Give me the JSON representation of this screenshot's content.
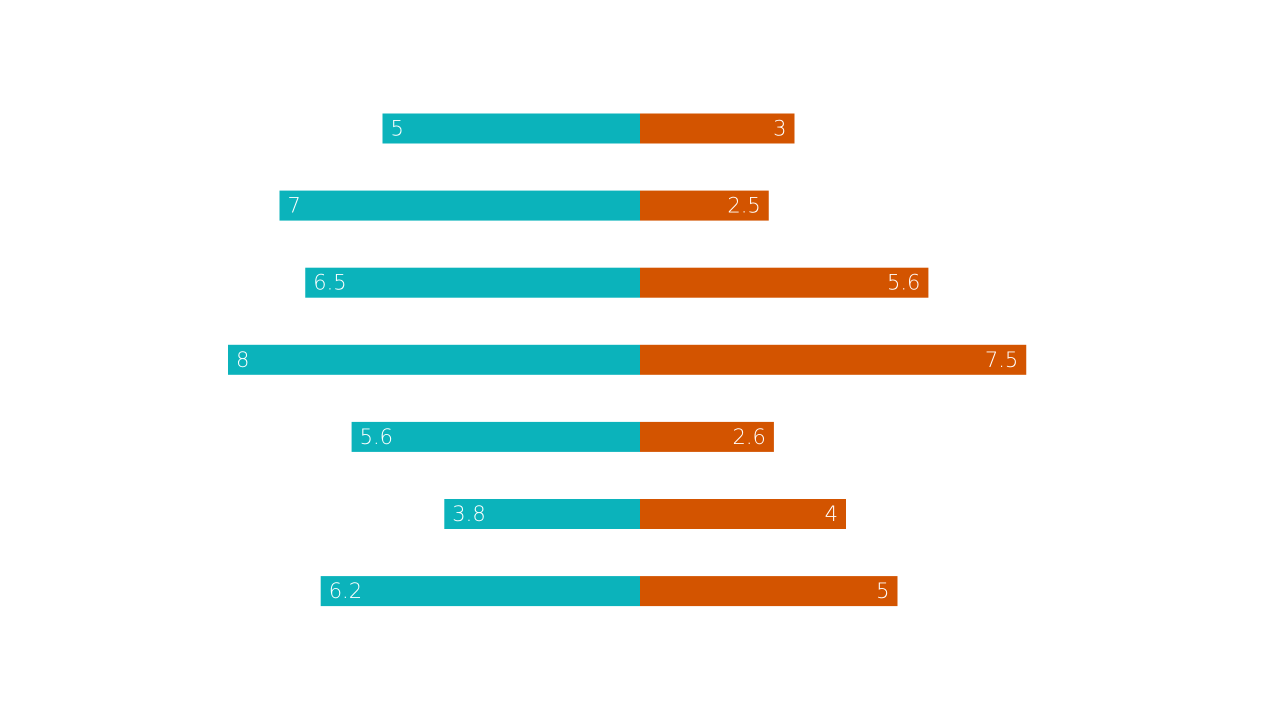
{
  "chart_data": {
    "type": "bar",
    "orientation": "horizontal-diverging",
    "grid": false,
    "legend": "none",
    "series": [
      {
        "color": "#0bb3bb",
        "values": [
          5,
          7,
          6.5,
          8,
          5.6,
          3.8,
          6.2
        ],
        "labels": [
          "5",
          "7",
          "6.5",
          "8",
          "5.6",
          "3.8",
          "6.2"
        ]
      },
      {
        "color": "#d35400",
        "values": [
          3,
          2.5,
          5.6,
          7.5,
          2.6,
          4,
          5
        ],
        "labels": [
          "3",
          "2.5",
          "5.6",
          "7.5",
          "2.6",
          "4",
          "5"
        ]
      }
    ]
  }
}
